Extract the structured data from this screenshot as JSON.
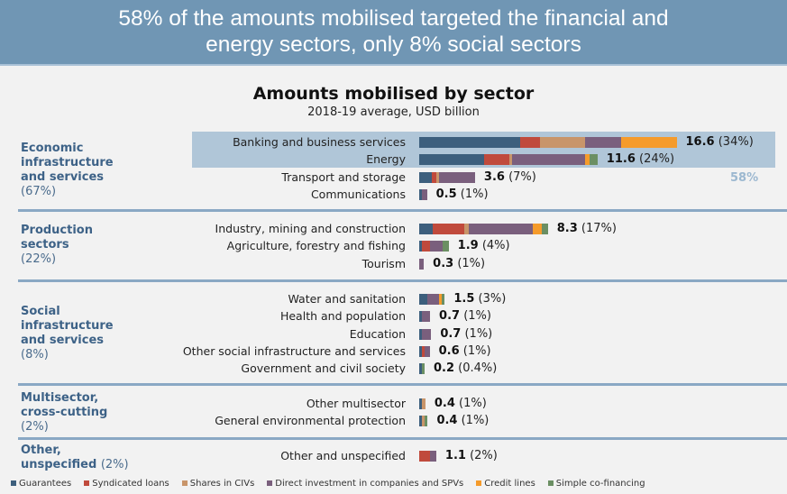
{
  "banner": {
    "line1": "58% of the amounts mobilised targeted the financial and",
    "line2": "energy sectors, only 8% social sectors"
  },
  "highlight_label": "58%",
  "chart_data": {
    "type": "bar",
    "orientation": "horizontal",
    "stacked": true,
    "title": "Amounts mobilised by sector",
    "subtitle": "2018-19 average, USD billion",
    "xlabel": "",
    "ylabel": "",
    "legend_position": "bottom",
    "series_names": [
      "Guarantees",
      "Syndicated loans",
      "Shares in CIVs",
      "Direct investment in companies and SPVs",
      "Credit lines",
      "Simple co-financing"
    ],
    "series_colors": [
      "#3d5f7d",
      "#c04a3c",
      "#c8956a",
      "#7a5f7d",
      "#f59b2b",
      "#6b8f63"
    ],
    "groups": [
      {
        "name": "Economic infrastructure and services",
        "share": "(67%)",
        "rows": [
          {
            "label": "Banking and business services",
            "total": 16.6,
            "share": "(34%)",
            "highlighted": true,
            "segments": [
              6.5,
              1.3,
              2.9,
              2.3,
              3.6,
              0.0
            ]
          },
          {
            "label": "Energy",
            "total": 11.6,
            "share": "(24%)",
            "highlighted": true,
            "segments": [
              4.2,
              1.6,
              0.2,
              4.7,
              0.3,
              0.5
            ]
          },
          {
            "label": "Transport and storage",
            "total": 3.6,
            "share": "(7%)",
            "highlighted": false,
            "segments": [
              0.8,
              0.3,
              0.2,
              2.3,
              0.0,
              0.0
            ]
          },
          {
            "label": "Communications",
            "total": 0.5,
            "share": "(1%)",
            "highlighted": false,
            "segments": [
              0.2,
              0.0,
              0.0,
              0.3,
              0.0,
              0.0
            ]
          }
        ]
      },
      {
        "name": "Production sectors",
        "share": "(22%)",
        "rows": [
          {
            "label": "Industry, mining and construction",
            "total": 8.3,
            "share": "(17%)",
            "highlighted": false,
            "segments": [
              0.9,
              2.0,
              0.3,
              4.1,
              0.6,
              0.4
            ]
          },
          {
            "label": "Agriculture, forestry and fishing",
            "total": 1.9,
            "share": "(4%)",
            "highlighted": false,
            "segments": [
              0.2,
              0.5,
              0.0,
              0.8,
              0.0,
              0.4
            ]
          },
          {
            "label": "Tourism",
            "total": 0.3,
            "share": "(1%)",
            "highlighted": false,
            "segments": [
              0.0,
              0.0,
              0.0,
              0.3,
              0.0,
              0.0
            ]
          }
        ]
      },
      {
        "name": "Social infrastructure and services",
        "share": "(8%)",
        "rows": [
          {
            "label": "Water and sanitation",
            "total": 1.5,
            "share": "(3%)",
            "highlighted": false,
            "segments": [
              0.5,
              0.0,
              0.0,
              0.8,
              0.1,
              0.1
            ]
          },
          {
            "label": "Health and population",
            "total": 0.7,
            "share": "(1%)",
            "highlighted": false,
            "segments": [
              0.2,
              0.0,
              0.0,
              0.5,
              0.0,
              0.0
            ]
          },
          {
            "label": "Education",
            "total": 0.7,
            "share": "(1%)",
            "highlighted": false,
            "segments": [
              0.1,
              0.0,
              0.0,
              0.6,
              0.0,
              0.0
            ]
          },
          {
            "label": "Other social infrastructure and services",
            "total": 0.6,
            "share": "(1%)",
            "highlighted": false,
            "segments": [
              0.1,
              0.2,
              0.0,
              0.3,
              0.0,
              0.0
            ]
          },
          {
            "label": "Government and civil society",
            "total": 0.2,
            "share": "(0.4%)",
            "highlighted": false,
            "segments": [
              0.1,
              0.0,
              0.0,
              0.0,
              0.0,
              0.1
            ]
          }
        ]
      },
      {
        "name": "Multisector, cross-cutting",
        "share": "(2%)",
        "rows": [
          {
            "label": "Other multisector",
            "total": 0.4,
            "share": "(1%)",
            "highlighted": false,
            "segments": [
              0.2,
              0.0,
              0.2,
              0.0,
              0.0,
              0.0
            ]
          },
          {
            "label": "General environmental protection",
            "total": 0.4,
            "share": "(1%)",
            "highlighted": false,
            "segments": [
              0.1,
              0.0,
              0.1,
              0.0,
              0.0,
              0.2
            ]
          }
        ]
      },
      {
        "name": "Other, unspecified",
        "share": "(2%)",
        "rows": [
          {
            "label": "Other and unspecified",
            "total": 1.1,
            "share": "(2%)",
            "highlighted": false,
            "segments": [
              0.0,
              0.7,
              0.0,
              0.4,
              0.0,
              0.0
            ]
          }
        ]
      }
    ]
  }
}
